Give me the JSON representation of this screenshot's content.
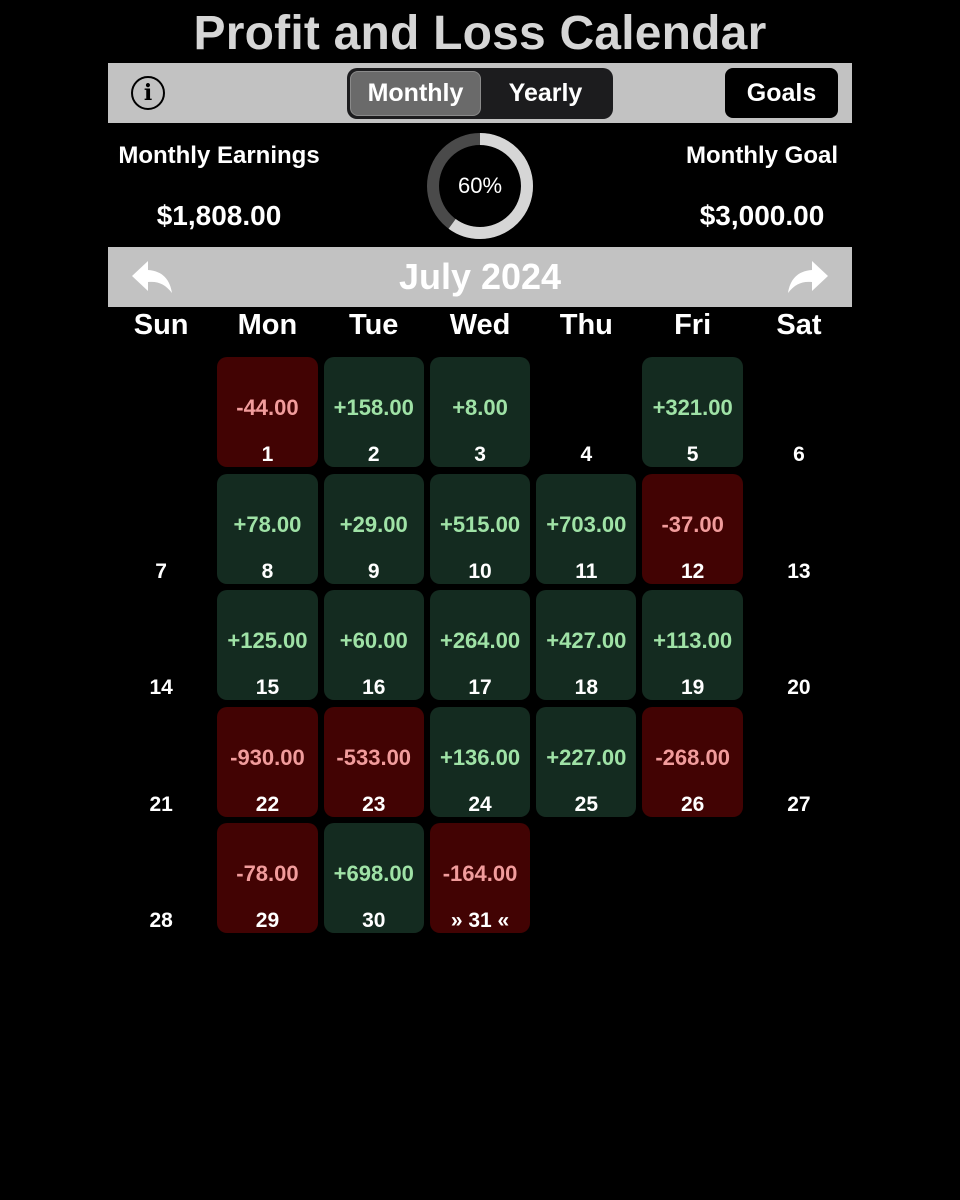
{
  "title": "Profit and Loss Calendar",
  "toolbar": {
    "info_icon": "info-icon",
    "tabs": [
      {
        "label": "Monthly",
        "active": true
      },
      {
        "label": "Yearly",
        "active": false
      }
    ],
    "goals_label": "Goals"
  },
  "summary": {
    "earnings_label": "Monthly Earnings",
    "earnings_value": "$1,808.00",
    "progress_percent": 60,
    "progress_text": "60%",
    "goal_label": "Monthly Goal",
    "goal_value": "$3,000.00"
  },
  "calendar": {
    "month_title": "July 2024",
    "prev_icon": "reply-arrow-icon",
    "next_icon": "forward-arrow-icon",
    "weekdays": [
      "Sun",
      "Mon",
      "Tue",
      "Wed",
      "Thu",
      "Fri",
      "Sat"
    ],
    "first_weekday_index": 1,
    "days": [
      {
        "day": "1",
        "value": "-44.00",
        "status": "loss"
      },
      {
        "day": "2",
        "value": "+158.00",
        "status": "profit"
      },
      {
        "day": "3",
        "value": "+8.00",
        "status": "profit"
      },
      {
        "day": "4",
        "value": "",
        "status": "none"
      },
      {
        "day": "5",
        "value": "+321.00",
        "status": "profit"
      },
      {
        "day": "6",
        "value": "",
        "status": "none"
      },
      {
        "day": "7",
        "value": "",
        "status": "none"
      },
      {
        "day": "8",
        "value": "+78.00",
        "status": "profit"
      },
      {
        "day": "9",
        "value": "+29.00",
        "status": "profit"
      },
      {
        "day": "10",
        "value": "+515.00",
        "status": "profit"
      },
      {
        "day": "11",
        "value": "+703.00",
        "status": "profit"
      },
      {
        "day": "12",
        "value": "-37.00",
        "status": "loss"
      },
      {
        "day": "13",
        "value": "",
        "status": "none"
      },
      {
        "day": "14",
        "value": "",
        "status": "none"
      },
      {
        "day": "15",
        "value": "+125.00",
        "status": "profit"
      },
      {
        "day": "16",
        "value": "+60.00",
        "status": "profit"
      },
      {
        "day": "17",
        "value": "+264.00",
        "status": "profit"
      },
      {
        "day": "18",
        "value": "+427.00",
        "status": "profit"
      },
      {
        "day": "19",
        "value": "+113.00",
        "status": "profit"
      },
      {
        "day": "20",
        "value": "",
        "status": "none"
      },
      {
        "day": "21",
        "value": "",
        "status": "none"
      },
      {
        "day": "22",
        "value": "-930.00",
        "status": "loss"
      },
      {
        "day": "23",
        "value": "-533.00",
        "status": "loss"
      },
      {
        "day": "24",
        "value": "+136.00",
        "status": "profit"
      },
      {
        "day": "25",
        "value": "+227.00",
        "status": "profit"
      },
      {
        "day": "26",
        "value": "-268.00",
        "status": "loss"
      },
      {
        "day": "27",
        "value": "",
        "status": "none"
      },
      {
        "day": "28",
        "value": "",
        "status": "none"
      },
      {
        "day": "29",
        "value": "-78.00",
        "status": "loss"
      },
      {
        "day": "30",
        "value": "+698.00",
        "status": "profit"
      },
      {
        "day": "» 31 «",
        "value": "-164.00",
        "status": "loss"
      }
    ]
  },
  "colors": {
    "profit_text": "#9fe2a6",
    "loss_text": "#f19c9c",
    "profit_bg": "#142b20",
    "loss_bg": "#420303",
    "bar_bg": "#c2c2c2"
  }
}
